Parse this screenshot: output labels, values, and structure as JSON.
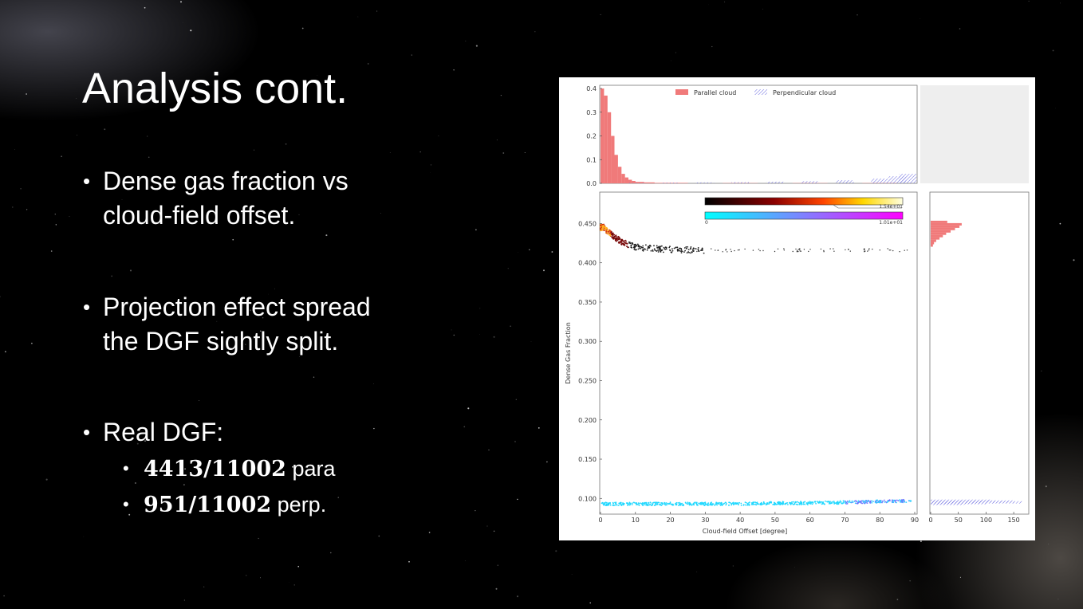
{
  "slide": {
    "title": "Analysis cont.",
    "bullets": [
      {
        "line1": "Dense gas fraction vs",
        "line2": "cloud-field offset."
      },
      {
        "line1": "Projection effect spread",
        "line2": "the DGF sightly split."
      },
      {
        "line1": "Real DGF:"
      }
    ],
    "sub_bullets": [
      {
        "value": "4413/11002",
        "suffix": " para"
      },
      {
        "value": "951/11002",
        "suffix": " perp."
      }
    ]
  },
  "chart_data": {
    "type": "scatter",
    "xlabel": "Cloud-field Offset [degree]",
    "ylabel": "Dense Gas Fraction",
    "xlim": [
      0,
      90
    ],
    "ylim": [
      0.08,
      0.49
    ],
    "x_ticks": [
      "0",
      "10",
      "20",
      "30",
      "40",
      "50",
      "60",
      "70",
      "80",
      "90"
    ],
    "y_ticks": [
      "0.100",
      "0.150",
      "0.200",
      "0.250",
      "0.300",
      "0.350",
      "0.400",
      "0.450"
    ],
    "series": [
      {
        "name": "Parallel cloud",
        "color": "#e85a5a",
        "x": [
          1,
          2,
          4,
          6,
          8,
          10,
          15,
          20,
          30,
          40,
          50,
          60,
          70,
          80,
          88
        ],
        "y": [
          0.445,
          0.44,
          0.433,
          0.427,
          0.423,
          0.42,
          0.418,
          0.417,
          0.416,
          0.416,
          0.416,
          0.416,
          0.416,
          0.416,
          0.416
        ]
      },
      {
        "name": "Perpendicular cloud",
        "color": "#6a6ae0",
        "x": [
          0,
          10,
          20,
          30,
          40,
          50,
          60,
          70,
          80,
          90
        ],
        "y": [
          0.093,
          0.093,
          0.093,
          0.093,
          0.093,
          0.094,
          0.094,
          0.095,
          0.096,
          0.097
        ]
      }
    ],
    "top_histogram": {
      "y_ticks": [
        "0.0",
        "0.1",
        "0.2",
        "0.3",
        "0.4"
      ],
      "ylim": [
        0,
        0.4
      ],
      "parallel_x": [
        0.5,
        1.5,
        2.5,
        3.5,
        4.5,
        5.5,
        6.5,
        7.5,
        8.5,
        9.5,
        11,
        14,
        20,
        40,
        60,
        80
      ],
      "parallel_frac": [
        0.4,
        0.37,
        0.3,
        0.2,
        0.12,
        0.07,
        0.04,
        0.025,
        0.015,
        0.01,
        0.006,
        0.004,
        0.002,
        0.001,
        0.001,
        0.001
      ],
      "perp_x": [
        10,
        20,
        30,
        40,
        50,
        60,
        70,
        80,
        85,
        88
      ],
      "perp_frac": [
        0.002,
        0.003,
        0.004,
        0.005,
        0.007,
        0.009,
        0.013,
        0.02,
        0.03,
        0.04
      ]
    },
    "side_histogram": {
      "x_ticks": [
        "0",
        "50",
        "100",
        "150"
      ],
      "xlim": [
        0,
        170
      ]
    },
    "colorbars": [
      {
        "min_label": "",
        "max_label": "1.54e+01"
      },
      {
        "min_label": "0",
        "max_label": "1.01e+01"
      }
    ]
  }
}
